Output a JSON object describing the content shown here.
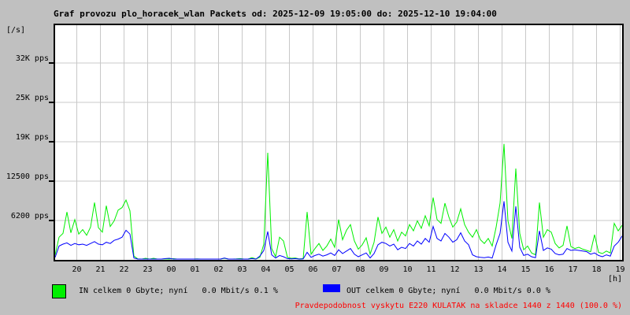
{
  "title": "Graf provozu plo_horacek_wlan Packets od: 2025-12-09 19:05:00 do: 2025-12-10 19:04:00",
  "y_axis": {
    "unit": "[/s]",
    "ticks": [
      {
        "label": "32K pps",
        "value": 31250
      },
      {
        "label": "25K pps",
        "value": 25000
      },
      {
        "label": "19K pps",
        "value": 18750
      },
      {
        "label": "12500 pps",
        "value": 12500
      },
      {
        "label": "6200 pps",
        "value": 6250
      }
    ]
  },
  "x_axis": {
    "unit": "[h]",
    "hours": [
      "20",
      "21",
      "22",
      "23",
      "00",
      "01",
      "02",
      "03",
      "04",
      "05",
      "06",
      "07",
      "08",
      "09",
      "10",
      "11",
      "12",
      "13",
      "14",
      "15",
      "16",
      "17",
      "18",
      "19"
    ]
  },
  "legend": {
    "in": {
      "label": "IN celkem 0 Gbyte; nyní   0.0 Mbit/s 0.1 %",
      "color": "#00f000"
    },
    "out": {
      "label": "OUT celkem 0 Gbyte; nyní   0.0 Mbit/s 0.0 %",
      "color": "#0000ff"
    }
  },
  "note": {
    "text": "Pravdepodobnost vyskytu E220 KULATAK na skladce 1440 z 1440 (100.0 %)",
    "color": "#ff0000"
  },
  "colors": {
    "background": "#c0c0c0",
    "plot_background": "#ffffff",
    "grid": "#c8c8c8",
    "border": "#000000",
    "in_line": "#00f000",
    "out_line": "#0000ff",
    "note_text": "#ff0000"
  },
  "chart_data": {
    "type": "line",
    "title": "Graf provozu plo_horacek_wlan Packets",
    "time_start": "2025-12-09 19:05:00",
    "time_end": "2025-12-10 19:04:00",
    "x_interval_minutes": 10,
    "x_range_minutes": 1440,
    "xlabel": "[h]",
    "ylabel": "[/s] (pps)",
    "ylim": [
      0,
      37500
    ],
    "grid": true,
    "legend_position": "bottom",
    "series": [
      {
        "name": "IN",
        "unit": "pps",
        "values": [
          800,
          3600,
          4200,
          7600,
          4300,
          6400,
          4100,
          4800,
          3900,
          5200,
          9100,
          5100,
          4400,
          8600,
          5300,
          6200,
          7900,
          8300,
          9500,
          7800,
          600,
          150,
          100,
          250,
          100,
          250,
          120,
          80,
          150,
          100,
          200,
          90,
          120,
          100,
          80,
          100,
          150,
          80,
          100,
          120,
          90,
          100,
          80,
          250,
          120,
          100,
          150,
          200,
          100,
          120,
          350,
          150,
          400,
          2500,
          17000,
          1800,
          500,
          3600,
          3000,
          400,
          250,
          300,
          150,
          200,
          7600,
          900,
          1800,
          2600,
          1500,
          2200,
          3300,
          2000,
          6400,
          3200,
          4700,
          5600,
          3000,
          1700,
          2400,
          3500,
          900,
          2800,
          6800,
          4200,
          5200,
          3600,
          4800,
          3000,
          4400,
          3800,
          5600,
          4600,
          6200,
          5000,
          7000,
          5400,
          9900,
          6400,
          5800,
          9000,
          6800,
          5200,
          6000,
          8100,
          5600,
          4400,
          3600,
          4800,
          3200,
          2600,
          3400,
          2200,
          5200,
          9000,
          18400,
          6200,
          3400,
          14500,
          4200,
          1600,
          2200,
          1100,
          800,
          9100,
          3600,
          4800,
          4400,
          2600,
          1900,
          2300,
          5400,
          2100,
          1800,
          2000,
          1700,
          1500,
          1300,
          4000,
          1200,
          1000,
          1400,
          1100,
          5800,
          4600,
          5500
        ]
      },
      {
        "name": "OUT",
        "unit": "pps",
        "values": [
          400,
          2200,
          2500,
          2700,
          2300,
          2600,
          2400,
          2500,
          2300,
          2600,
          2900,
          2500,
          2400,
          2800,
          2600,
          3100,
          3300,
          3600,
          4700,
          4100,
          300,
          50,
          30,
          80,
          40,
          60,
          50,
          40,
          200,
          250,
          60,
          40,
          50,
          60,
          40,
          50,
          40,
          60,
          50,
          40,
          60,
          50,
          40,
          300,
          60,
          50,
          40,
          60,
          50,
          40,
          200,
          80,
          600,
          1500,
          4500,
          800,
          300,
          700,
          500,
          200,
          150,
          200,
          100,
          150,
          1200,
          400,
          700,
          900,
          600,
          800,
          1100,
          700,
          1600,
          1000,
          1400,
          1800,
          900,
          500,
          800,
          1100,
          300,
          1000,
          2400,
          2800,
          2600,
          2200,
          2500,
          1600,
          2000,
          1800,
          2600,
          2200,
          3000,
          2500,
          3400,
          2800,
          5300,
          3400,
          3000,
          4200,
          3600,
          2800,
          3200,
          4300,
          3000,
          2400,
          800,
          500,
          400,
          350,
          450,
          300,
          2400,
          4200,
          9300,
          2800,
          1400,
          8500,
          2000,
          700,
          900,
          500,
          350,
          4600,
          1500,
          1900,
          1700,
          1000,
          800,
          900,
          1800,
          1500,
          1600,
          1500,
          1400,
          1300,
          900,
          1100,
          700,
          500,
          800,
          600,
          2200,
          2800,
          3800
        ]
      }
    ]
  }
}
